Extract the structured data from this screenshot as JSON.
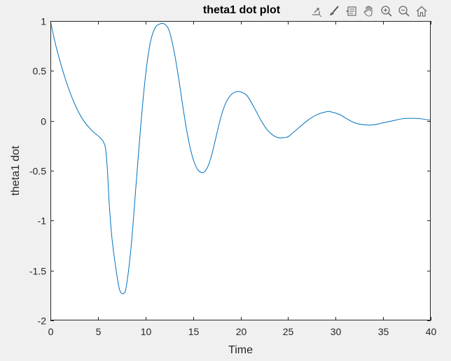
{
  "window": {
    "background": "#f0f0f0"
  },
  "toolbar": {
    "buttons": [
      {
        "icon": "export-icon",
        "label": ""
      },
      {
        "icon": "brush-icon",
        "label": ""
      },
      {
        "icon": "datatip-icon",
        "label": ""
      },
      {
        "icon": "pan-hand-icon",
        "label": ""
      },
      {
        "icon": "zoom-in-icon",
        "label": ""
      },
      {
        "icon": "zoom-out-icon",
        "label": ""
      },
      {
        "icon": "home-icon",
        "label": ""
      }
    ]
  },
  "chart_data": {
    "type": "line",
    "title": "theta1 dot plot",
    "xlabel": "Time",
    "ylabel": "theta1 dot",
    "xlim": [
      0,
      40
    ],
    "ylim": [
      -2,
      1
    ],
    "xticks": [
      "0",
      "5",
      "10",
      "15",
      "20",
      "25",
      "30",
      "35",
      "40"
    ],
    "yticks": [
      "1",
      "0.5",
      "0",
      "-0.5",
      "-1",
      "-1.5",
      "-2"
    ],
    "grid": false,
    "series": [
      {
        "color": "#0072bd",
        "x": [
          0,
          0.5,
          1,
          1.5,
          2,
          2.5,
          3,
          3.5,
          4,
          4.5,
          5,
          5.5,
          5.8,
          6.0,
          6.2,
          6.5,
          7,
          7.3,
          7.7,
          8,
          8.5,
          9,
          9.5,
          10,
          10.5,
          11,
          11.5,
          12,
          12.5,
          13,
          13.5,
          14,
          14.5,
          15,
          15.5,
          16,
          16.3,
          16.6,
          17,
          17.5,
          18,
          18.5,
          19,
          19.5,
          20,
          20.7,
          21.5,
          22,
          22.5,
          23,
          23.5,
          24,
          24.5,
          25,
          25.5,
          26,
          27,
          28,
          29,
          29.5,
          30.5,
          31,
          32,
          33,
          34,
          35,
          36,
          37,
          38,
          39,
          40
        ],
        "y": [
          1.0,
          0.78,
          0.6,
          0.44,
          0.3,
          0.18,
          0.08,
          0.0,
          -0.06,
          -0.11,
          -0.15,
          -0.2,
          -0.28,
          -0.5,
          -0.85,
          -1.2,
          -1.55,
          -1.7,
          -1.73,
          -1.65,
          -1.25,
          -0.65,
          -0.05,
          0.45,
          0.78,
          0.93,
          0.97,
          0.97,
          0.9,
          0.7,
          0.42,
          0.1,
          -0.18,
          -0.38,
          -0.49,
          -0.52,
          -0.5,
          -0.45,
          -0.33,
          -0.13,
          0.06,
          0.19,
          0.26,
          0.29,
          0.29,
          0.25,
          0.12,
          0.03,
          -0.05,
          -0.11,
          -0.15,
          -0.17,
          -0.17,
          -0.16,
          -0.12,
          -0.08,
          0.0,
          0.06,
          0.09,
          0.09,
          0.06,
          0.03,
          -0.02,
          -0.04,
          -0.04,
          -0.02,
          0.0,
          0.02,
          0.025,
          0.02,
          0.005
        ]
      }
    ]
  }
}
